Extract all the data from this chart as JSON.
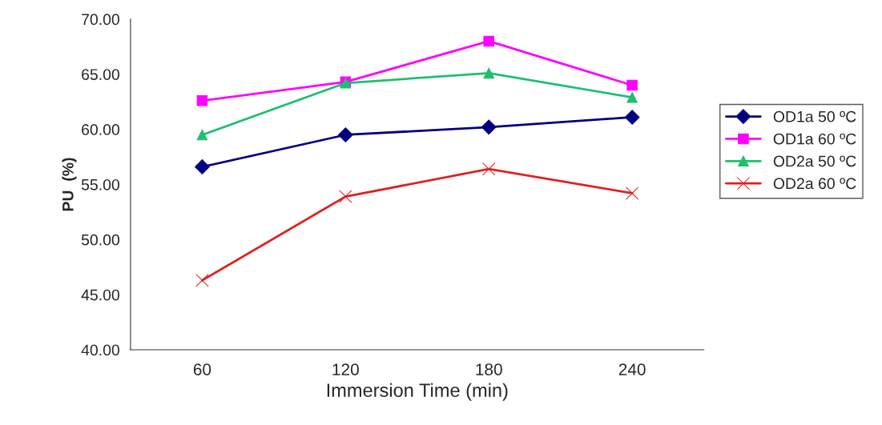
{
  "chart_data": {
    "type": "line",
    "xlabel": "Immersion Time (min)",
    "ylabel": "PU  (%)",
    "categories": [
      "60",
      "120",
      "180",
      "240"
    ],
    "series": [
      {
        "name": "OD1a 50 ºC",
        "color": "#000080",
        "marker": "diamond",
        "values": [
          56.6,
          59.5,
          60.2,
          61.1
        ]
      },
      {
        "name": "OD1a 60 ºC",
        "color": "#ff00ff",
        "marker": "square",
        "values": [
          62.6,
          64.3,
          68.0,
          64.0
        ]
      },
      {
        "name": "OD2a 50 ºC",
        "color": "#1fbf6f",
        "marker": "triangle",
        "values": [
          59.5,
          64.2,
          65.1,
          62.9
        ]
      },
      {
        "name": "OD2a 60 ºC",
        "color": "#e02020",
        "marker": "cross",
        "values": [
          46.3,
          53.9,
          56.4,
          54.2
        ]
      }
    ],
    "ylim": [
      40,
      70
    ],
    "yticks": [
      {
        "value": 40,
        "label": "40.00"
      },
      {
        "value": 45,
        "label": "45.00"
      },
      {
        "value": 50,
        "label": "50.00"
      },
      {
        "value": 55,
        "label": "55.00"
      },
      {
        "value": 60,
        "label": "60.00"
      },
      {
        "value": 65,
        "label": "65.00"
      },
      {
        "value": 70,
        "label": "70.00"
      }
    ],
    "grid": false,
    "legend": "right",
    "line_style": "solid"
  }
}
